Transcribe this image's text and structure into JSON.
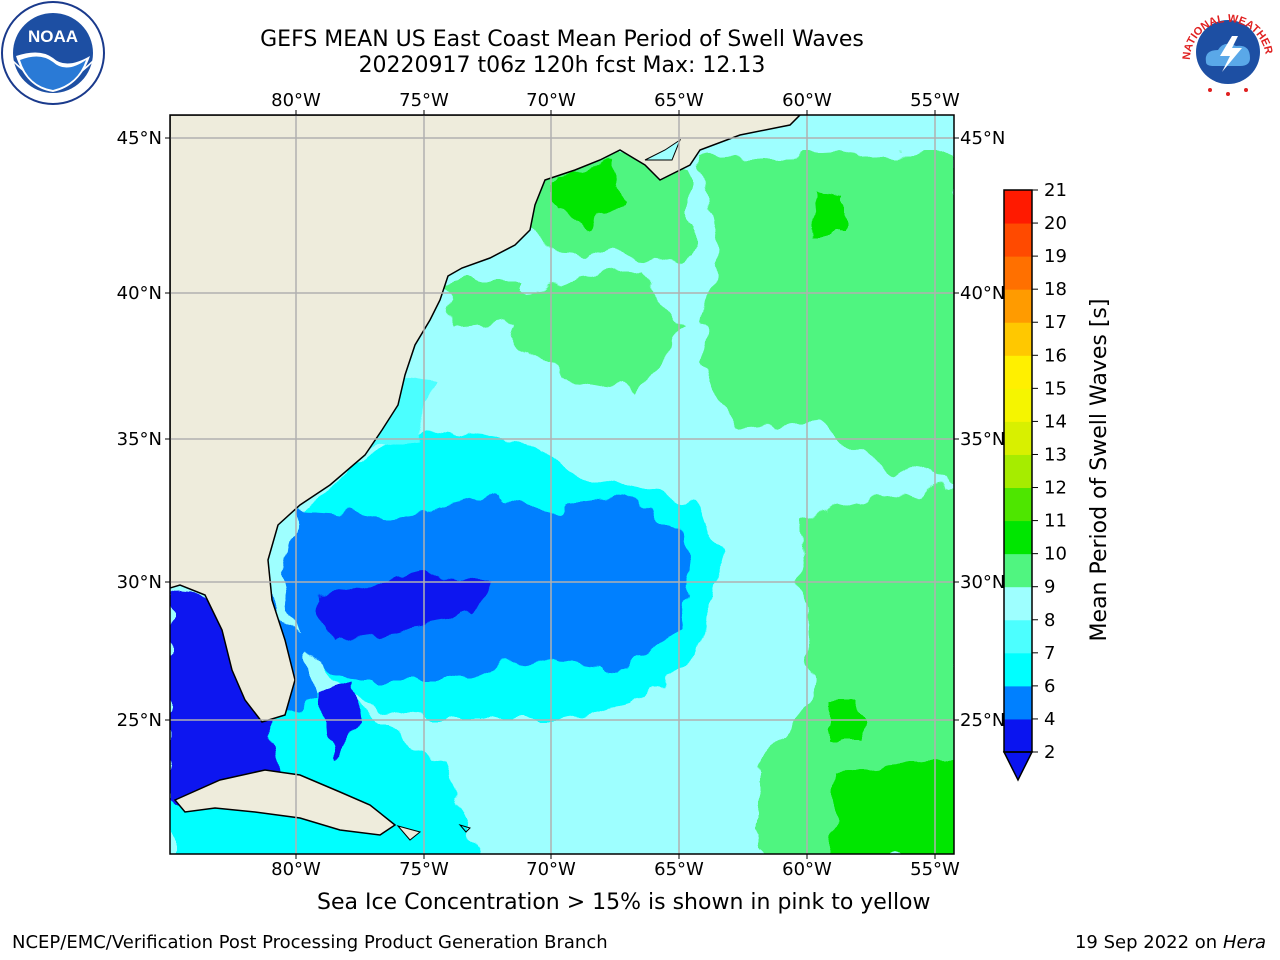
{
  "header": {
    "title_line1": "GEFS MEAN US East Coast Mean Period of Swell Waves",
    "title_line2": "20220917 t06z 120h fcst   Max: 12.13"
  },
  "logos": {
    "left": {
      "text": "NOAA"
    },
    "right": {
      "text": "NATIONAL WEATHER SERVICE"
    }
  },
  "map": {
    "lon_ticks": [
      "80°W",
      "75°W",
      "70°W",
      "65°W",
      "60°W",
      "55°W"
    ],
    "lat_ticks_left": [
      "45°N",
      "40°N",
      "35°N",
      "30°N",
      "25°N"
    ],
    "lat_ticks_right": [
      "45°N",
      "40°N",
      "35°N",
      "30°N",
      "25°N"
    ],
    "lon_range": [
      -84.5,
      -54.3
    ],
    "lat_range": [
      20.1,
      45.8
    ],
    "land_color": "#eeecdc",
    "grid_color": "#b0b0b0"
  },
  "colorbar": {
    "label": "Mean Period of Swell Waves [s]",
    "ticks": [
      "2",
      "4",
      "6",
      "7",
      "8",
      "9",
      "10",
      "11",
      "12",
      "13",
      "14",
      "15",
      "16",
      "17",
      "18",
      "19",
      "20",
      "21"
    ],
    "colors": [
      "#0a14f0",
      "#0080ff",
      "#00ffff",
      "#4cffff",
      "#9effff",
      "#50f580",
      "#00e600",
      "#4ee600",
      "#a6ec00",
      "#d8f000",
      "#f5f500",
      "#fff000",
      "#ffc800",
      "#ff9b00",
      "#ff7000",
      "#ff4a00",
      "#ff1a00"
    ],
    "under_color": "#0a14f0"
  },
  "footer": {
    "note": "Sea Ice Concentration > 15% is shown in pink to yellow",
    "left": "NCEP/EMC/Verification Post Processing Product Generation Branch",
    "right_date": "19 Sep 2022 on",
    "right_host": "Hera"
  }
}
